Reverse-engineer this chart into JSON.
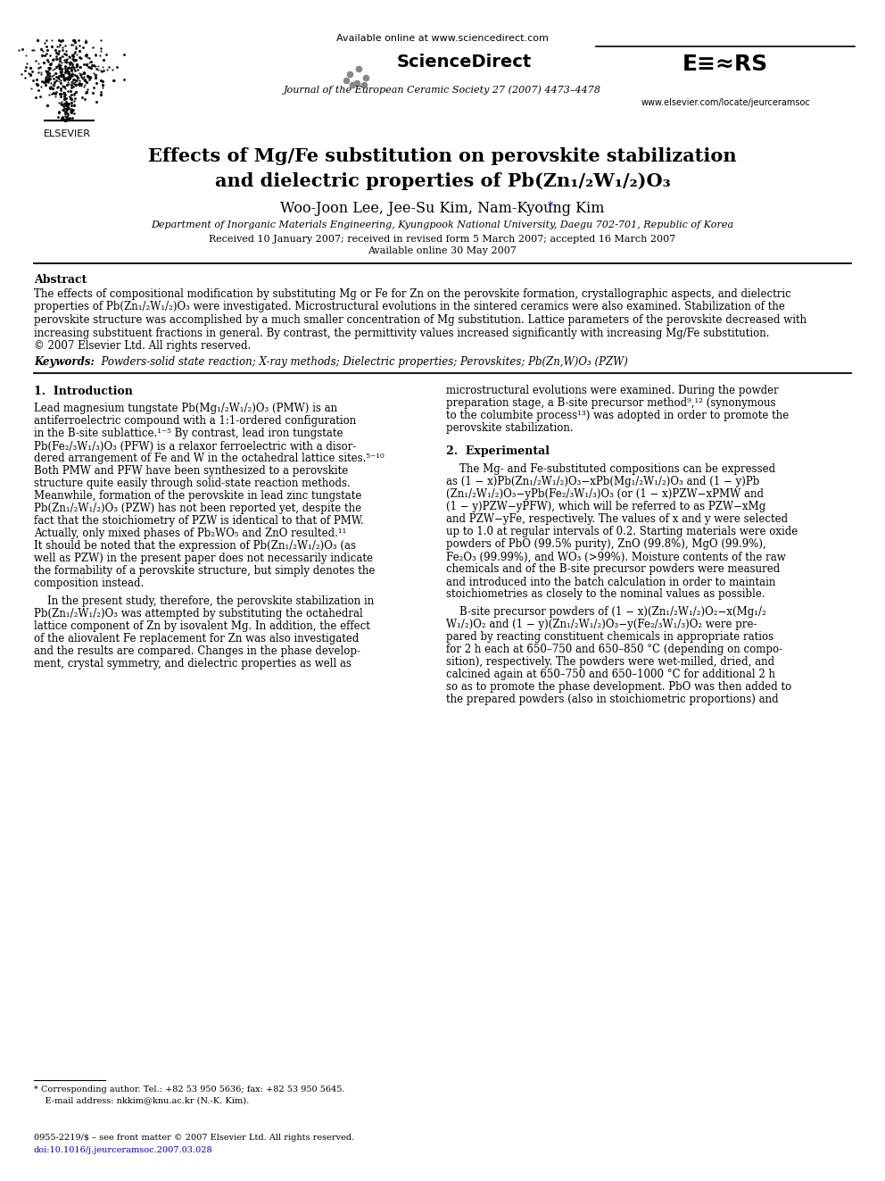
{
  "page_width": 9.92,
  "page_height": 13.23,
  "background_color": "#ffffff",
  "available_online_text": "Available online at www.sciencedirect.com",
  "journal_text": "Journal of the European Ceramic Society 27 (2007) 4473–4478",
  "website_text": "www.elsevier.com/locate/jeurceramsoc",
  "elsevier_label": "ELSEVIER",
  "title_line1": "Effects of Mg/Fe substitution on perovskite stabilization",
  "title_line2": "and dielectric properties of Pb(Zn₁/₂W₁/₂)O₃",
  "authors": "Woo-Joon Lee, Jee-Su Kim, Nam-Kyoung Kim",
  "affiliation": "Department of Inorganic Materials Engineering, Kyungpook National University, Daegu 702-701, Republic of Korea",
  "received_text": "Received 10 January 2007; received in revised form 5 March 2007; accepted 16 March 2007",
  "available_text": "Available online 30 May 2007",
  "abstract_heading": "Abstract",
  "abstract_body_line1": "The effects of compositional modification by substituting Mg or Fe for Zn on the perovskite formation, crystallographic aspects, and dielectric",
  "abstract_body_line2": "properties of Pb(Zn₁/₂W₁/₂)O₃ were investigated. Microstructural evolutions in the sintered ceramics were also examined. Stabilization of the",
  "abstract_body_line3": "perovskite structure was accomplished by a much smaller concentration of Mg substitution. Lattice parameters of the perovskite decreased with",
  "abstract_body_line4": "increasing substituent fractions in general. By contrast, the permittivity values increased significantly with increasing Mg/Fe substitution.",
  "abstract_body_line5": "© 2007 Elsevier Ltd. All rights reserved.",
  "keywords_label": "Keywords:",
  "keywords_text": "  Powders-solid state reaction; X-ray methods; Dielectric properties; Perovskites; Pb(Zn,W)O₃ (PZW)",
  "section1_heading": "1.  Introduction",
  "section2_heading": "2.  Experimental",
  "footnote_star": "* Corresponding author. Tel.: +82 53 950 5636; fax: +82 53 950 5645.",
  "footnote_email": "    E-mail address: nkkim@knu.ac.kr (N.-K. Kim).",
  "bottom_issn": "0955-2219/$ – see front matter © 2007 Elsevier Ltd. All rights reserved.",
  "bottom_doi": "doi:10.1016/j.jeurceramsoc.2007.03.028",
  "col1_p1_lines": [
    "Lead magnesium tungstate Pb(Mg₁/₂W₁/₂)O₃ (PMW) is an",
    "antiferroelectric compound with a 1:1-ordered configuration",
    "in the B-site sublattice.¹⁻⁵ By contrast, lead iron tungstate",
    "Pb(Fe₂/₃W₁/₃)O₃ (PFW) is a relaxor ferroelectric with a disor-",
    "dered arrangement of Fe and W in the octahedral lattice sites.⁵⁻¹⁰",
    "Both PMW and PFW have been synthesized to a perovskite",
    "structure quite easily through solid-state reaction methods.",
    "Meanwhile, formation of the perovskite in lead zinc tungstate",
    "Pb(Zn₁/₂W₁/₂)O₃ (PZW) has not been reported yet, despite the",
    "fact that the stoichiometry of PZW is identical to that of PMW.",
    "Actually, only mixed phases of Pb₂WO₅ and ZnO resulted.¹¹",
    "It should be noted that the expression of Pb(Zn₁/₂W₁/₂)O₃ (as",
    "well as PZW) in the present paper does not necessarily indicate",
    "the formability of a perovskite structure, but simply denotes the",
    "composition instead."
  ],
  "col1_p2_lines": [
    "    In the present study, therefore, the perovskite stabilization in",
    "Pb(Zn₁/₂W₁/₂)O₃ was attempted by substituting the octahedral",
    "lattice component of Zn by isovalent Mg. In addition, the effect",
    "of the aliovalent Fe replacement for Zn was also investigated",
    "and the results are compared. Changes in the phase develop-",
    "ment, crystal symmetry, and dielectric properties as well as"
  ],
  "col2_intro_lines": [
    "microstructural evolutions were examined. During the powder",
    "preparation stage, a B-site precursor method⁹‚¹² (synonymous",
    "to the columbite process¹³) was adopted in order to promote the",
    "perovskite stabilization."
  ],
  "col2_exp_p1_lines": [
    "    The Mg- and Fe-substituted compositions can be expressed",
    "as (1 − x)Pb(Zn₁/₂W₁/₂)O₃−xPb(Mg₁/₂W₁/₂)O₃ and (1 − y)Pb",
    "(Zn₁/₂W₁/₂)O₃−yPb(Fe₂/₃W₁/₃)O₃ (or (1 − x)PZW−xPMW and",
    "(1 − y)PZW−yPFW), which will be referred to as PZW−xMg",
    "and PZW−yFe, respectively. The values of x and y were selected",
    "up to 1.0 at regular intervals of 0.2. Starting materials were oxide",
    "powders of PbO (99.5% purity), ZnO (99.8%), MgO (99.9%),",
    "Fe₂O₃ (99.99%), and WO₃ (>99%). Moisture contents of the raw",
    "chemicals and of the B-site precursor powders were measured",
    "and introduced into the batch calculation in order to maintain",
    "stoichiometries as closely to the nominal values as possible."
  ],
  "col2_exp_p2_lines": [
    "    B-site precursor powders of (1 − x)(Zn₁/₂W₁/₂)O₂−x(Mg₁/₂",
    "W₁/₂)O₂ and (1 − y)(Zn₁/₂W₁/₂)O₃−y(Fe₂/₃W₁/₃)O₂ were pre-",
    "pared by reacting constituent chemicals in appropriate ratios",
    "for 2 h each at 650–750 and 650–850 °C (depending on compo-",
    "sition), respectively. The powders were wet-milled, dried, and",
    "calcined again at 650–750 and 650–1000 °C for additional 2 h",
    "so as to promote the phase development. PbO was then added to",
    "the prepared powders (also in stoichiometric proportions) and"
  ]
}
